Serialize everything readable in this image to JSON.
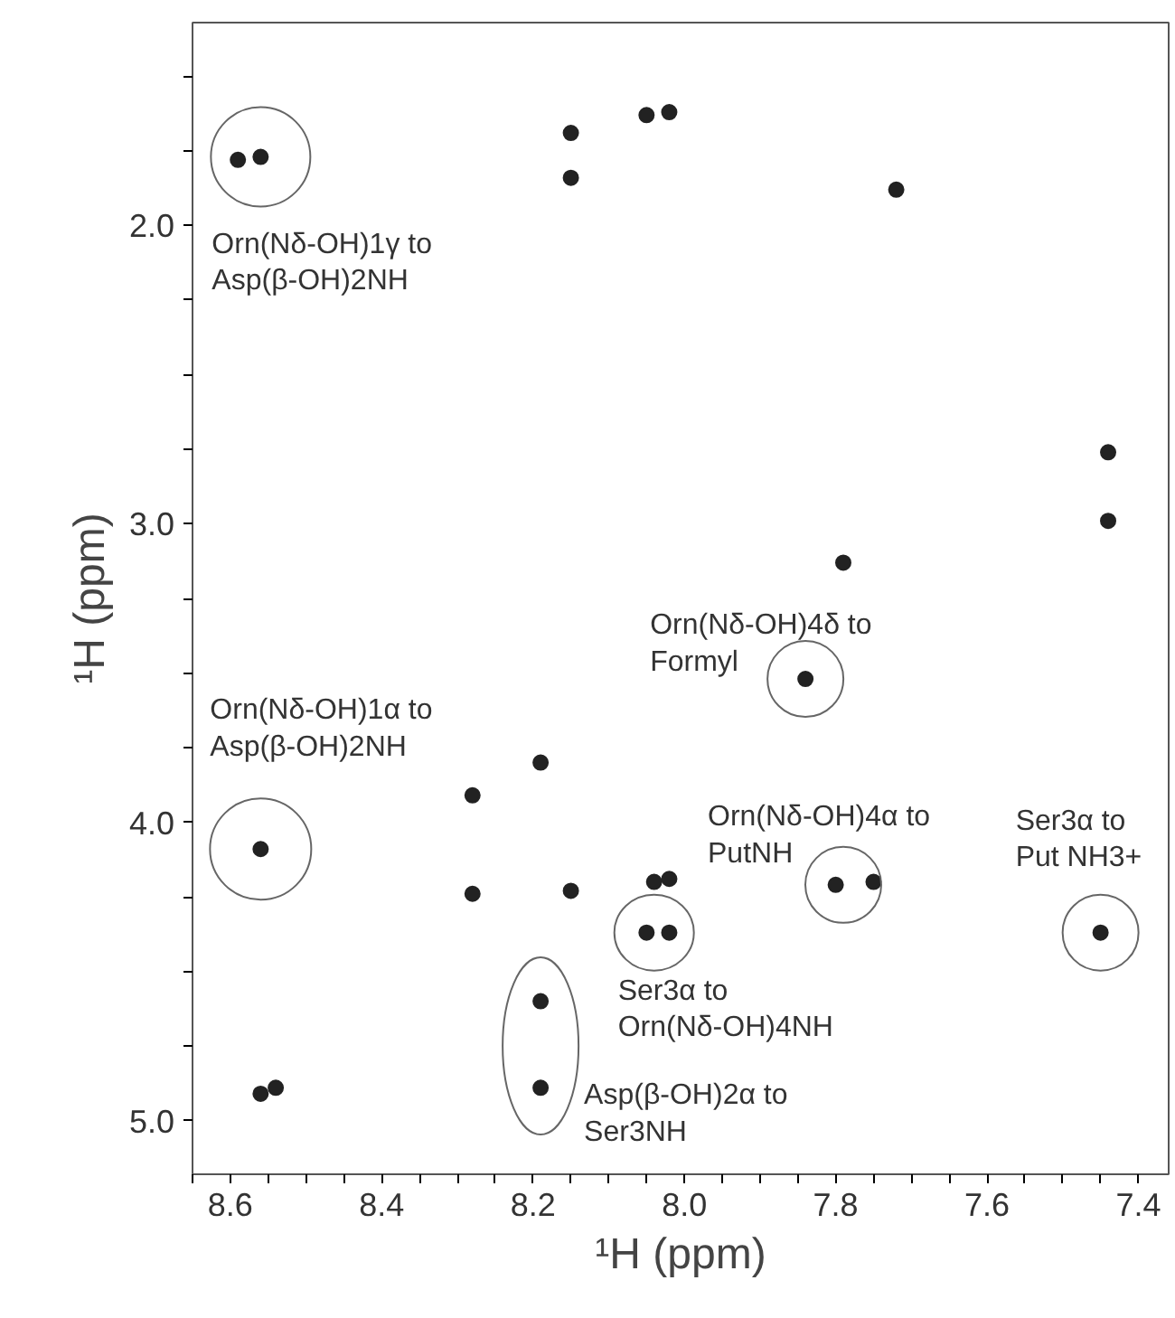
{
  "chart_data": {
    "type": "scatter",
    "xlabel": "¹H (ppm)",
    "ylabel": "¹H (ppm)",
    "x": [
      8.59,
      8.56,
      8.15,
      8.15,
      8.05,
      8.02,
      7.72,
      7.44,
      7.44,
      7.79,
      8.56,
      8.28,
      8.28,
      8.19,
      8.15,
      8.19,
      8.19,
      8.56,
      8.54,
      8.04,
      8.02,
      7.84,
      7.8,
      7.75,
      8.05,
      8.02,
      7.45
    ],
    "values": [
      1.78,
      1.77,
      1.69,
      1.84,
      1.63,
      1.62,
      1.88,
      2.76,
      2.99,
      3.13,
      4.09,
      3.91,
      4.24,
      3.8,
      4.23,
      4.6,
      4.89,
      4.91,
      4.89,
      4.2,
      4.19,
      3.52,
      4.21,
      4.2,
      4.37,
      4.37,
      4.37
    ],
    "color": "#222222",
    "marker": "circle",
    "grid": false,
    "legend": false,
    "xlim": [
      8.65,
      7.36
    ],
    "ylim": [
      5.18,
      1.32
    ],
    "xticks": [
      {
        "value": 8.65,
        "label": null
      },
      8.6,
      {
        "value": 8.55,
        "label": null
      },
      {
        "value": 8.5,
        "label": null
      },
      {
        "value": 8.45,
        "label": null
      },
      8.4,
      {
        "value": 8.35,
        "label": null
      },
      {
        "value": 8.3,
        "label": null
      },
      {
        "value": 8.25,
        "label": null
      },
      8.2,
      {
        "value": 8.15,
        "label": null
      },
      {
        "value": 8.1,
        "label": null
      },
      {
        "value": 8.05,
        "label": null
      },
      {
        "value": 8,
        "label": "8.0"
      },
      {
        "value": 7.95,
        "label": null
      },
      {
        "value": 7.9,
        "label": null
      },
      {
        "value": 7.85,
        "label": null
      },
      7.8,
      {
        "value": 7.75,
        "label": null
      },
      {
        "value": 7.7,
        "label": null
      },
      {
        "value": 7.65,
        "label": null
      },
      7.6,
      {
        "value": 7.55,
        "label": null
      },
      {
        "value": 7.5,
        "label": null
      },
      {
        "value": 7.45,
        "label": null
      },
      7.4
    ],
    "yticks": [
      {
        "value": 1.5,
        "label": null
      },
      {
        "value": 1.75,
        "label": null
      },
      {
        "value": 2,
        "label": "2.0"
      },
      {
        "value": 2.25,
        "label": null
      },
      {
        "value": 2.5,
        "label": null
      },
      {
        "value": 2.75,
        "label": null
      },
      {
        "value": 3,
        "label": "3.0"
      },
      {
        "value": 3.25,
        "label": null
      },
      {
        "value": 3.5,
        "label": null
      },
      {
        "value": 3.75,
        "label": null
      },
      {
        "value": 4,
        "label": "4.0"
      },
      {
        "value": 4.25,
        "label": null
      },
      {
        "value": 4.5,
        "label": null
      },
      {
        "value": 4.75,
        "label": null
      },
      {
        "value": 5,
        "label": "5.0"
      }
    ],
    "annotations": [
      {
        "text": "Orn(Nδ-OH)1γ to\nAsp(β-OH)2NH",
        "x": 8.56,
        "y": 1.77
      },
      {
        "text": "Orn(Nδ-OH)1α to\nAsp(β-OH)2NH",
        "x": 8.56,
        "y": 4.09
      },
      {
        "text": "Orn(Nδ-OH)4δ to\nFormyl",
        "x": 7.84,
        "y": 3.52
      },
      {
        "text": "Orn(Nδ-OH)4α to\nPutNH",
        "x": 7.79,
        "y": 4.21
      },
      {
        "text": "Ser3α to\nPut NH3+",
        "x": 7.45,
        "y": 4.37
      },
      {
        "text": "Ser3α to\nOrn(Nδ-OH)4NH",
        "x": 8.04,
        "y": 4.37
      },
      {
        "text": "Asp(β-OH)2α to\nSer3NH",
        "x": 8.19,
        "y": 4.89
      }
    ]
  }
}
